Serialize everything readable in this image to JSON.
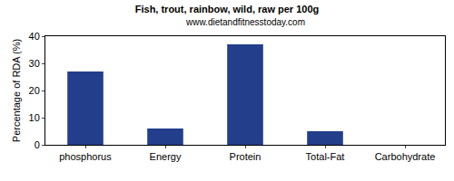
{
  "chart_data": {
    "type": "bar",
    "title": "Fish, trout, rainbow, wild, raw per 100g",
    "subtitle": "www.dietandfitnesstoday.com",
    "y_label": "Percentage of RDA (%)",
    "categories": [
      "phosphorus",
      "Energy",
      "Protein",
      "Total-Fat",
      "Carbohydrate"
    ],
    "values": [
      27,
      6,
      37,
      5,
      0
    ],
    "color": "#233e8b",
    "ylim": [
      0,
      40
    ],
    "yticks": [
      0,
      10,
      20,
      30,
      40
    ],
    "grid": false
  }
}
